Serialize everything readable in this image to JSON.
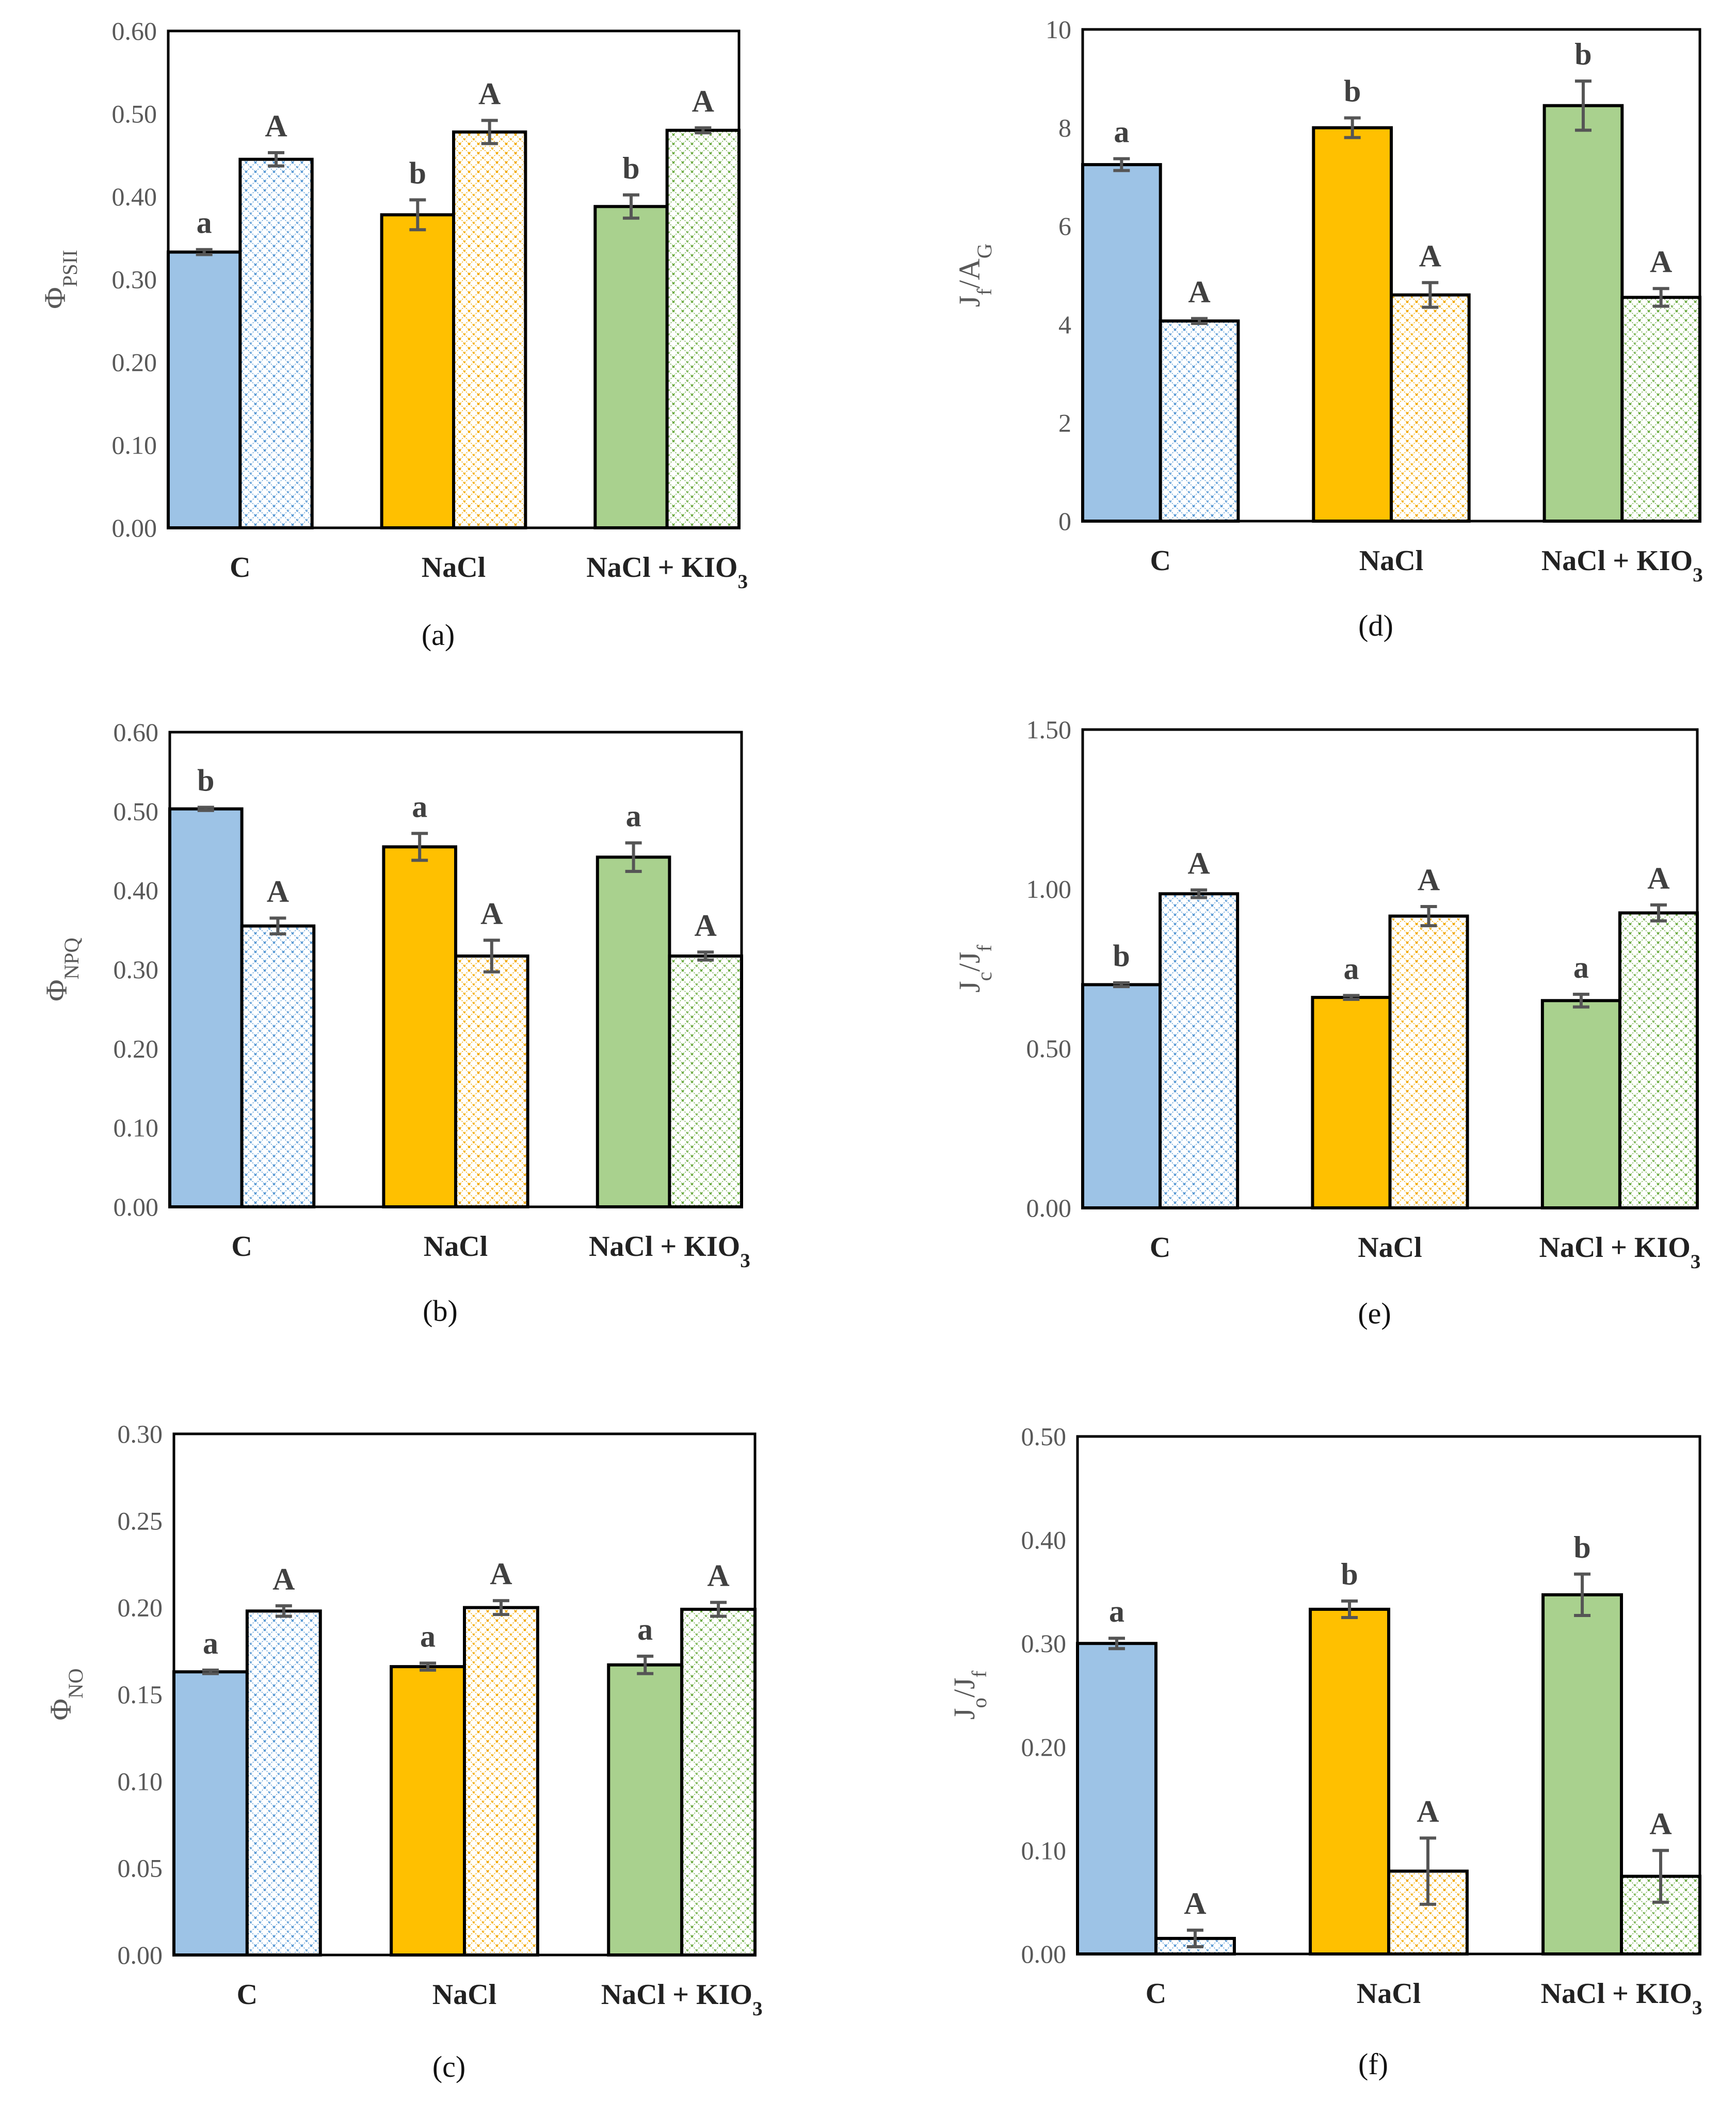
{
  "colors": {
    "C": {
      "fill": "#9DC3E6",
      "hatch": "#5B9BD5"
    },
    "NaCl": {
      "fill": "#FFC000",
      "hatch": "#F2A900"
    },
    "KIO3": {
      "fill": "#A9D18E",
      "hatch": "#70AD47"
    }
  },
  "chart_data": [
    {
      "panel": "(a)",
      "type": "bar",
      "ylabel": [
        {
          "t": "Φ"
        },
        {
          "t": "PSII",
          "sub": true
        }
      ],
      "categories": [
        [
          {
            "t": "C"
          }
        ],
        [
          {
            "t": "NaCl"
          }
        ],
        [
          {
            "t": "NaCl + KIO"
          },
          {
            "t": "3",
            "sub": true
          }
        ]
      ],
      "ylim": [
        0,
        0.6
      ],
      "ystep": 0.1,
      "decimals": 2,
      "series": [
        {
          "name": "solid",
          "values": [
            0.333,
            0.378,
            0.388
          ],
          "errors": [
            0.003,
            0.018,
            0.014
          ],
          "letters": [
            "a",
            "b",
            "b"
          ]
        },
        {
          "name": "hatched",
          "values": [
            0.445,
            0.478,
            0.48
          ],
          "errors": [
            0.008,
            0.014,
            0.003
          ],
          "letters": [
            "A",
            "A",
            "A"
          ]
        }
      ]
    },
    {
      "panel": "(d)",
      "type": "bar",
      "ylabel": [
        {
          "t": "J"
        },
        {
          "t": "f",
          "sub": true
        },
        {
          "t": "/A"
        },
        {
          "t": "G",
          "sub": true
        }
      ],
      "categories": [
        [
          {
            "t": "C"
          }
        ],
        [
          {
            "t": "NaCl"
          }
        ],
        [
          {
            "t": "NaCl + KIO"
          },
          {
            "t": "3",
            "sub": true
          }
        ]
      ],
      "ylim": [
        0,
        10
      ],
      "ystep": 2,
      "decimals": 0,
      "series": [
        {
          "name": "solid",
          "values": [
            7.25,
            8.0,
            8.45
          ],
          "errors": [
            0.12,
            0.2,
            0.5
          ],
          "letters": [
            "a",
            "b",
            "b"
          ]
        },
        {
          "name": "hatched",
          "values": [
            4.07,
            4.6,
            4.55
          ],
          "errors": [
            0.05,
            0.25,
            0.18
          ],
          "letters": [
            "A",
            "A",
            "A"
          ]
        }
      ]
    },
    {
      "panel": "(b)",
      "type": "bar",
      "ylabel": [
        {
          "t": "Φ"
        },
        {
          "t": "NPQ",
          "sub": true
        }
      ],
      "categories": [
        [
          {
            "t": "C"
          }
        ],
        [
          {
            "t": "NaCl"
          }
        ],
        [
          {
            "t": "NaCl + KIO"
          },
          {
            "t": "3",
            "sub": true
          }
        ]
      ],
      "ylim": [
        0,
        0.6
      ],
      "ystep": 0.1,
      "decimals": 2,
      "series": [
        {
          "name": "solid",
          "values": [
            0.503,
            0.455,
            0.442
          ],
          "errors": [
            0.002,
            0.017,
            0.018
          ],
          "letters": [
            "b",
            "a",
            "a"
          ]
        },
        {
          "name": "hatched",
          "values": [
            0.355,
            0.317,
            0.317
          ],
          "errors": [
            0.01,
            0.02,
            0.005
          ],
          "letters": [
            "A",
            "A",
            "A"
          ]
        }
      ]
    },
    {
      "panel": "(e)",
      "type": "bar",
      "ylabel": [
        {
          "t": "J"
        },
        {
          "t": "c",
          "sub": true
        },
        {
          "t": "/J"
        },
        {
          "t": "f",
          "sub": true
        }
      ],
      "categories": [
        [
          {
            "t": "C"
          }
        ],
        [
          {
            "t": "NaCl"
          }
        ],
        [
          {
            "t": "NaCl + KIO"
          },
          {
            "t": "3",
            "sub": true
          }
        ]
      ],
      "ylim": [
        0,
        1.5
      ],
      "ystep": 0.5,
      "decimals": 2,
      "series": [
        {
          "name": "solid",
          "values": [
            0.7,
            0.66,
            0.65
          ],
          "errors": [
            0.006,
            0.006,
            0.02
          ],
          "letters": [
            "b",
            "a",
            "a"
          ]
        },
        {
          "name": "hatched",
          "values": [
            0.985,
            0.915,
            0.925
          ],
          "errors": [
            0.012,
            0.03,
            0.025
          ],
          "letters": [
            "A",
            "A",
            "A"
          ]
        }
      ]
    },
    {
      "panel": "(c)",
      "type": "bar",
      "ylabel": [
        {
          "t": "Φ"
        },
        {
          "t": "NO",
          "sub": true
        }
      ],
      "categories": [
        [
          {
            "t": "C"
          }
        ],
        [
          {
            "t": "NaCl"
          }
        ],
        [
          {
            "t": "NaCl + KIO"
          },
          {
            "t": "3",
            "sub": true
          }
        ]
      ],
      "ylim": [
        0,
        0.3
      ],
      "ystep": 0.05,
      "decimals": 2,
      "series": [
        {
          "name": "solid",
          "values": [
            0.163,
            0.166,
            0.167
          ],
          "errors": [
            0.001,
            0.002,
            0.005
          ],
          "letters": [
            "a",
            "a",
            "a"
          ]
        },
        {
          "name": "hatched",
          "values": [
            0.198,
            0.2,
            0.199
          ],
          "errors": [
            0.003,
            0.004,
            0.004
          ],
          "letters": [
            "A",
            "A",
            "A"
          ]
        }
      ]
    },
    {
      "panel": "(f)",
      "type": "bar",
      "ylabel": [
        {
          "t": "J"
        },
        {
          "t": "o",
          "sub": true
        },
        {
          "t": "/J"
        },
        {
          "t": "f",
          "sub": true
        }
      ],
      "categories": [
        [
          {
            "t": "C"
          }
        ],
        [
          {
            "t": "NaCl"
          }
        ],
        [
          {
            "t": "NaCl + KIO"
          },
          {
            "t": "3",
            "sub": true
          }
        ]
      ],
      "ylim": [
        0,
        0.5
      ],
      "ystep": 0.1,
      "decimals": 2,
      "series": [
        {
          "name": "solid",
          "values": [
            0.3,
            0.333,
            0.347
          ],
          "errors": [
            0.005,
            0.008,
            0.02
          ],
          "letters": [
            "a",
            "b",
            "b"
          ]
        },
        {
          "name": "hatched",
          "values": [
            0.015,
            0.08,
            0.075
          ],
          "errors": [
            0.008,
            0.032,
            0.025
          ],
          "letters": [
            "A",
            "A",
            "A"
          ]
        }
      ]
    }
  ]
}
